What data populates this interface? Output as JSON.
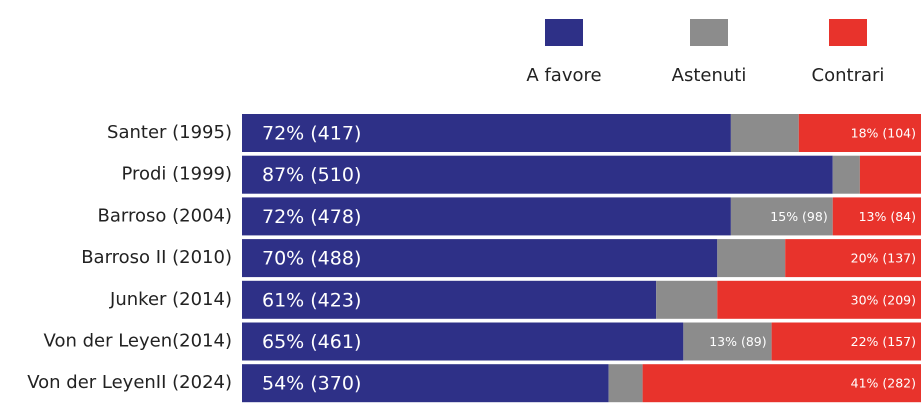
{
  "chart_data": {
    "type": "stacked_barh",
    "categories": [
      "Santer (1995)",
      "Prodi (1999)",
      "Barroso (2004)",
      "Barroso II (2010)",
      "Junker (2014)",
      "Von der Leyen(2014)",
      "Von der LeyenII (2024)"
    ],
    "xlim": [
      0,
      100
    ],
    "series": [
      {
        "name": "A favore",
        "color": "#2e3087",
        "values": [
          72,
          87,
          72,
          70,
          61,
          65,
          54
        ],
        "value_labels": [
          "72% (417)",
          "87% (510)",
          "72% (478)",
          "70% (488)",
          "61% (423)",
          "65% (461)",
          "54% (370)"
        ]
      },
      {
        "name": "Astenuti",
        "color": "#8c8c8c",
        "values": [
          10,
          4,
          15,
          10,
          9,
          13,
          5
        ],
        "value_labels": [
          null,
          null,
          "15% (98)",
          null,
          null,
          "13% (89)",
          null
        ]
      },
      {
        "name": "Contrari",
        "color": "#e8332c",
        "values": [
          18,
          9,
          13,
          20,
          30,
          22,
          41
        ],
        "value_labels": [
          "18% (104)",
          null,
          "13% (84)",
          "20% (137)",
          "30% (209)",
          "22% (157)",
          "41% (282)"
        ]
      }
    ]
  }
}
